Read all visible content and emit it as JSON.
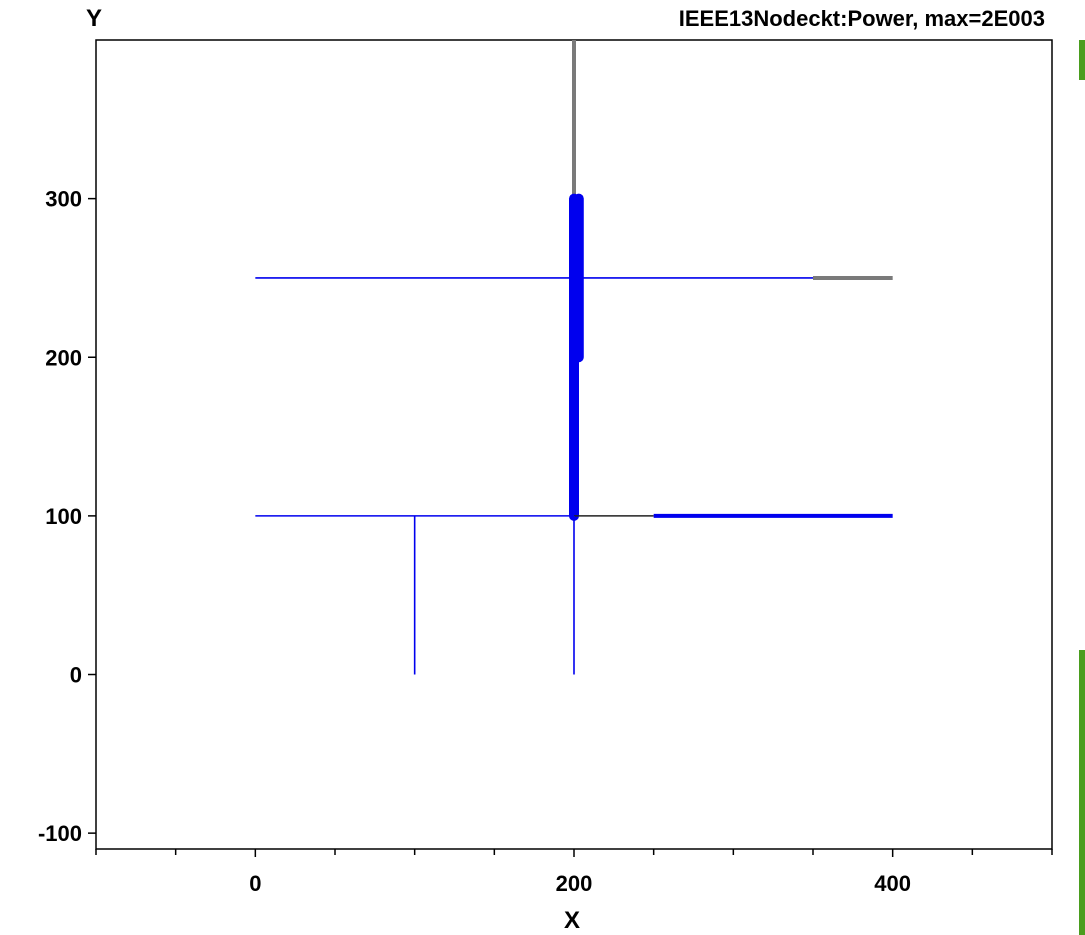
{
  "chart_data": {
    "type": "line",
    "title": "IEEE13Nodeckt:Power, max=2E003",
    "xlabel": "X",
    "ylabel": "Y",
    "xlim": [
      -100,
      500
    ],
    "ylim": [
      -110,
      400
    ],
    "x_ticks": [
      0,
      200,
      400
    ],
    "y_ticks": [
      -100,
      0,
      100,
      200,
      300
    ],
    "grid": false,
    "colors": {
      "blue": "#0000ee",
      "gray": "#7a7a7a",
      "black": "#222222"
    },
    "segments": [
      {
        "x": [
          0,
          200
        ],
        "y": [
          250,
          250
        ],
        "color": "blue",
        "weight": "thin"
      },
      {
        "x": [
          200,
          350
        ],
        "y": [
          250,
          250
        ],
        "color": "blue",
        "weight": "thin"
      },
      {
        "x": [
          350,
          400
        ],
        "y": [
          250,
          250
        ],
        "color": "gray",
        "weight": "medium"
      },
      {
        "x": [
          200,
          200
        ],
        "y": [
          300,
          400
        ],
        "color": "gray",
        "weight": "medium"
      },
      {
        "x": [
          200,
          200
        ],
        "y": [
          100,
          300
        ],
        "color": "blue",
        "weight": "thick"
      },
      {
        "x": [
          203,
          203
        ],
        "y": [
          200,
          300
        ],
        "color": "blue",
        "weight": "thick"
      },
      {
        "x": [
          0,
          200
        ],
        "y": [
          100,
          100
        ],
        "color": "blue",
        "weight": "thin"
      },
      {
        "x": [
          200,
          250
        ],
        "y": [
          100,
          100
        ],
        "color": "black",
        "weight": "thin"
      },
      {
        "x": [
          250,
          400
        ],
        "y": [
          100,
          100
        ],
        "color": "blue",
        "weight": "medium"
      },
      {
        "x": [
          100,
          100
        ],
        "y": [
          0,
          100
        ],
        "color": "blue",
        "weight": "thin"
      },
      {
        "x": [
          200,
          200
        ],
        "y": [
          0,
          100
        ],
        "color": "blue",
        "weight": "thin"
      }
    ]
  }
}
